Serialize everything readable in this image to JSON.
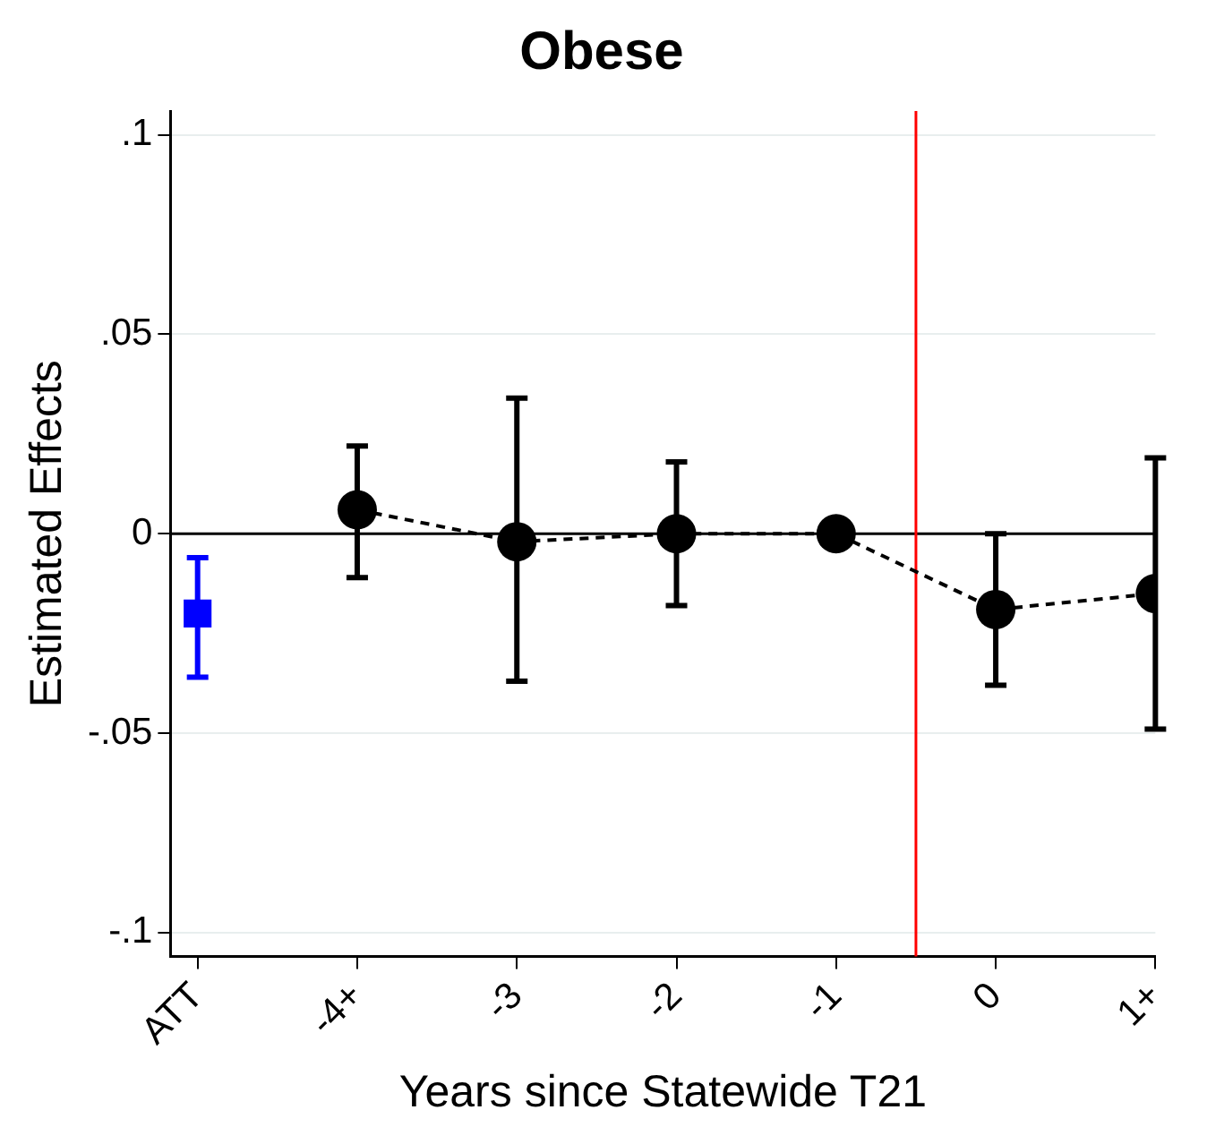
{
  "chart_data": {
    "type": "line",
    "title": "Obese",
    "xlabel": "Years since Statewide T21",
    "ylabel": "Estimated Effects",
    "x": [
      -5,
      -4,
      -3,
      -2,
      -1,
      0,
      1
    ],
    "series": [
      {
        "type": "scatter",
        "color": "#0000ff",
        "marker": "square",
        "values": [
          -0.02,
          null,
          null,
          null,
          null,
          null,
          null
        ],
        "errors": [
          [
            -0.036,
            -0.006
          ],
          null,
          null,
          null,
          null,
          null,
          null
        ]
      },
      {
        "color": "#000000",
        "marker": "circle",
        "line_style": "dashed",
        "values": [
          null,
          0.006,
          -0.002,
          0.0,
          0.0,
          -0.019,
          -0.015
        ],
        "errors": [
          null,
          [
            -0.011,
            0.022
          ],
          [
            -0.037,
            0.034
          ],
          [
            -0.018,
            0.018
          ],
          null,
          [
            -0.038,
            0.0
          ],
          [
            -0.049,
            0.019
          ]
        ]
      }
    ],
    "xlim": [
      -5.17,
      1
    ],
    "xticks": [
      {
        "value": -5,
        "label": "ATT"
      },
      {
        "value": -4,
        "label": "-4+"
      },
      -3,
      -2,
      -1,
      0,
      {
        "value": 1,
        "label": "1+"
      }
    ],
    "ylim": [
      -0.106,
      0.106
    ],
    "yticks": [
      {
        "value": -0.1,
        "label": "-.1"
      },
      {
        "value": -0.05,
        "label": "-.05"
      },
      {
        "value": 0,
        "label": "0"
      },
      {
        "value": 0.05,
        "label": ".05"
      },
      {
        "value": 0.1,
        "label": ".1"
      }
    ],
    "ref_lines": [
      {
        "axis": "y",
        "value": 0,
        "color": "#000000"
      },
      {
        "axis": "x",
        "value": -0.5,
        "color": "#ff0000"
      }
    ],
    "grid": "y",
    "legend": false
  }
}
